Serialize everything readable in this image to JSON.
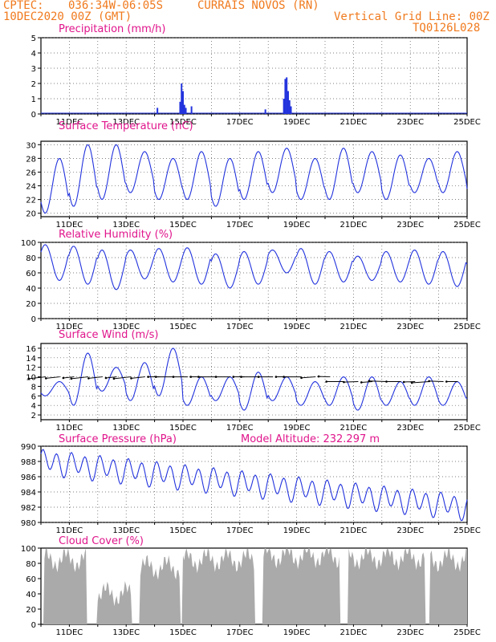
{
  "header": {
    "source": "CPTEC:",
    "coords": "036:34W-06:05S",
    "location": "CURRAIS NOVOS (RN)",
    "run_date": "10DEC2020 00Z (GMT)",
    "grid_note": "Vertical Grid Line: 00Z",
    "model_id": "TQ0126L028"
  },
  "colors": {
    "header_text": "#f07a1e",
    "panel_title": "#e0158c",
    "series_line": "#2233dd",
    "cloud_fill": "#aaaaaa",
    "wind_arrow": "#000000"
  },
  "x_day_labels": [
    "11DEC",
    "13DEC",
    "15DEC",
    "17DEC",
    "19DEC",
    "21DEC",
    "23DEC",
    "25DEC"
  ],
  "chart_data": [
    {
      "id": "precip",
      "type": "bar",
      "title": "Precipitation (mm/h)",
      "ylim": [
        0,
        5
      ],
      "yticks": [
        0,
        1,
        2,
        3,
        4,
        5
      ],
      "grid": true,
      "x_unit": "days since 10DEC2020 00Z",
      "x": [
        4.1,
        4.9,
        4.95,
        5.0,
        5.05,
        5.1,
        5.3,
        7.9,
        8.55,
        8.6,
        8.65,
        8.7,
        8.75,
        8.8
      ],
      "values": [
        0.4,
        0.8,
        2.0,
        1.5,
        0.6,
        0.4,
        0.5,
        0.3,
        1.0,
        2.3,
        2.4,
        1.5,
        0.9,
        0.5
      ]
    },
    {
      "id": "temp",
      "type": "line",
      "title": "Surface Temperature (nC)",
      "ylim": [
        19.5,
        30.5
      ],
      "yticks": [
        20,
        22,
        24,
        26,
        28,
        30
      ],
      "grid": true,
      "daily_max": [
        28,
        30,
        30,
        29,
        28,
        29,
        28,
        29,
        29.5,
        28,
        29.5,
        29,
        28.5,
        28,
        29,
        29.5
      ],
      "daily_min": [
        20,
        21,
        22,
        23,
        22,
        22,
        21,
        22,
        23,
        22,
        22,
        23,
        22,
        23,
        23,
        22
      ]
    },
    {
      "id": "rh",
      "type": "line",
      "title": "Relative Humidity (%)",
      "ylim": [
        0,
        100
      ],
      "yticks": [
        0,
        20,
        40,
        60,
        80,
        100
      ],
      "grid": true,
      "daily_max": [
        97,
        95,
        90,
        90,
        92,
        93,
        85,
        88,
        90,
        92,
        88,
        82,
        88,
        90,
        88,
        80
      ],
      "daily_min": [
        50,
        45,
        38,
        52,
        48,
        45,
        40,
        45,
        60,
        45,
        48,
        50,
        48,
        45,
        42,
        38
      ]
    },
    {
      "id": "wind",
      "type": "line",
      "title": "Surface Wind (m/s)",
      "ylim": [
        1,
        17
      ],
      "yticks": [
        2,
        4,
        6,
        8,
        10,
        12,
        14,
        16
      ],
      "grid": true,
      "daily_max": [
        9,
        15,
        12,
        13,
        16,
        10,
        10,
        11,
        10,
        9,
        10,
        10,
        9,
        10,
        9,
        11
      ],
      "daily_min": [
        6,
        4,
        7,
        5,
        6,
        4,
        5,
        3,
        5,
        4,
        4,
        3,
        4,
        4,
        4,
        4
      ]
    },
    {
      "id": "press",
      "type": "line",
      "title": "Surface Pressure (hPa)",
      "extra": "Model Altitude: 232.297 m",
      "ylim": [
        980,
        990
      ],
      "yticks": [
        980,
        982,
        984,
        986,
        988,
        990
      ],
      "grid": true,
      "trend_start": 988,
      "trend_end": 982
    },
    {
      "id": "cloud",
      "type": "area",
      "title": "Cloud Cover (%)",
      "ylim": [
        0,
        100
      ],
      "yticks": [
        0,
        20,
        40,
        60,
        80,
        100
      ],
      "grid": false,
      "segments": [
        {
          "x0": 0.1,
          "x1": 1.6,
          "level": 85
        },
        {
          "x0": 2.0,
          "x1": 3.2,
          "level": 40
        },
        {
          "x0": 3.5,
          "x1": 4.9,
          "level": 75
        },
        {
          "x0": 5.0,
          "x1": 7.5,
          "level": 85
        },
        {
          "x0": 7.8,
          "x1": 10.5,
          "level": 90
        },
        {
          "x0": 10.8,
          "x1": 13.5,
          "level": 88
        },
        {
          "x0": 13.7,
          "x1": 15.0,
          "level": 85
        }
      ]
    }
  ]
}
